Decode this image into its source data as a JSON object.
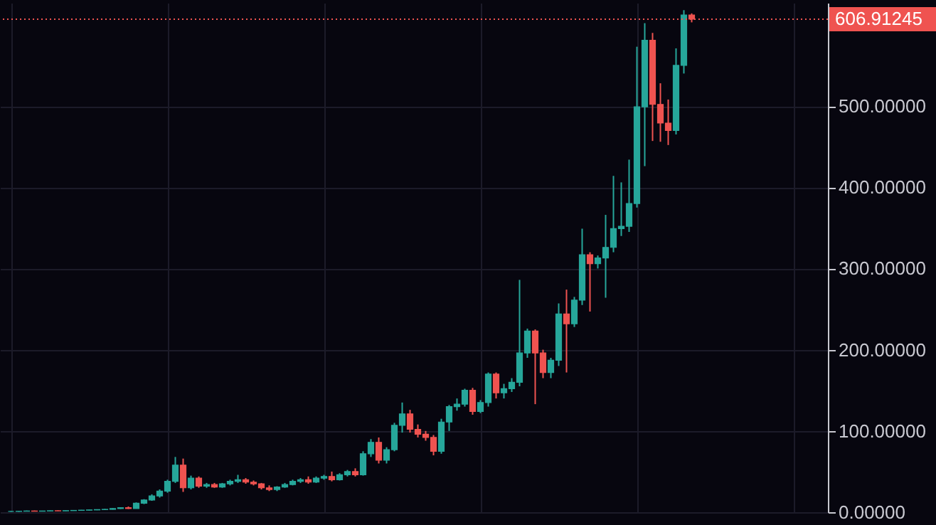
{
  "chart_data": {
    "type": "candlestick",
    "categories": [
      null,
      null,
      null,
      null,
      null,
      null,
      null,
      null,
      null,
      null,
      null,
      null,
      null,
      null,
      null,
      null,
      null,
      null,
      null,
      null,
      null,
      null,
      null,
      null,
      null,
      null,
      null,
      null,
      null,
      null,
      null,
      null,
      null,
      null,
      null,
      null,
      null,
      null,
      null,
      null,
      null,
      null,
      null,
      null,
      null,
      null,
      null,
      null,
      null,
      null,
      null,
      null,
      null,
      null,
      null,
      null,
      null,
      null,
      null,
      null,
      null,
      null,
      null,
      null,
      null,
      null,
      null,
      null,
      null,
      null,
      null,
      null,
      null,
      null,
      null,
      null,
      null,
      null,
      null,
      null,
      null,
      null,
      null,
      null,
      null,
      null,
      null,
      null,
      null,
      null,
      null,
      null,
      null,
      null,
      null,
      null,
      null,
      null,
      null,
      null,
      null,
      null,
      null,
      null
    ],
    "ohlc": [
      [
        1,
        1.5,
        0.5,
        1
      ],
      [
        1,
        1.5,
        0.5,
        1.2
      ],
      [
        1.2,
        2,
        1,
        1.5
      ],
      [
        1.5,
        2,
        1,
        1.2
      ],
      [
        1.2,
        1.8,
        1,
        1.5
      ],
      [
        1.5,
        2,
        1.2,
        1.8
      ],
      [
        1.8,
        2.2,
        1.5,
        1.6
      ],
      [
        1.6,
        2,
        1.4,
        1.9
      ],
      [
        1.9,
        2.5,
        1.7,
        2.2
      ],
      [
        2.2,
        2.8,
        2,
        2.5
      ],
      [
        2.5,
        3,
        2.2,
        2.8
      ],
      [
        2.8,
        3.5,
        2.5,
        3.2
      ],
      [
        3.2,
        4,
        3,
        3.5
      ],
      [
        3.5,
        5,
        3.2,
        4.5
      ],
      [
        4.5,
        6,
        4,
        5.5
      ],
      [
        5.5,
        7,
        4,
        4.5
      ],
      [
        4.5,
        12,
        4.5,
        11
      ],
      [
        11,
        16,
        10,
        15
      ],
      [
        15,
        22,
        14,
        20
      ],
      [
        20,
        28,
        18,
        26
      ],
      [
        26,
        40,
        24,
        38
      ],
      [
        38,
        68,
        36,
        58
      ],
      [
        58,
        66,
        25,
        30
      ],
      [
        30,
        45,
        28,
        42
      ],
      [
        42,
        44,
        30,
        32
      ],
      [
        32,
        36,
        30,
        34
      ],
      [
        34,
        36,
        30,
        31
      ],
      [
        31,
        36,
        30,
        35
      ],
      [
        35,
        40,
        33,
        38
      ],
      [
        38,
        46,
        36,
        40
      ],
      [
        40,
        42,
        35,
        37
      ],
      [
        37,
        39,
        33,
        35
      ],
      [
        35,
        36,
        28,
        30
      ],
      [
        30,
        33,
        26,
        28
      ],
      [
        28,
        32,
        26,
        31
      ],
      [
        31,
        36,
        30,
        34
      ],
      [
        34,
        40,
        33,
        38
      ],
      [
        38,
        42,
        36,
        40
      ],
      [
        40,
        44,
        35,
        37
      ],
      [
        37,
        44,
        36,
        42
      ],
      [
        42,
        46,
        40,
        44
      ],
      [
        44,
        50,
        38,
        40
      ],
      [
        40,
        48,
        39,
        46
      ],
      [
        46,
        52,
        44,
        50
      ],
      [
        50,
        54,
        44,
        46
      ],
      [
        46,
        75,
        45,
        72
      ],
      [
        72,
        90,
        68,
        86
      ],
      [
        86,
        92,
        60,
        64
      ],
      [
        64,
        80,
        60,
        77
      ],
      [
        77,
        110,
        75,
        107
      ],
      [
        107,
        135,
        98,
        121
      ],
      [
        121,
        126,
        98,
        102
      ],
      [
        102,
        108,
        92,
        96
      ],
      [
        96,
        100,
        88,
        92
      ],
      [
        92,
        95,
        70,
        75
      ],
      [
        75,
        115,
        72,
        111
      ],
      [
        111,
        132,
        100,
        130
      ],
      [
        130,
        140,
        125,
        133
      ],
      [
        133,
        152,
        130,
        150
      ],
      [
        150,
        153,
        120,
        124
      ],
      [
        124,
        138,
        122,
        135
      ],
      [
        135,
        172,
        130,
        170
      ],
      [
        170,
        172,
        140,
        147
      ],
      [
        147,
        158,
        140,
        152
      ],
      [
        152,
        165,
        148,
        160
      ],
      [
        160,
        286,
        155,
        196
      ],
      [
        196,
        226,
        190,
        223
      ],
      [
        223,
        225,
        133,
        196
      ],
      [
        196,
        200,
        165,
        172
      ],
      [
        172,
        190,
        165,
        187
      ],
      [
        187,
        257,
        180,
        244
      ],
      [
        244,
        274,
        172,
        232
      ],
      [
        232,
        265,
        228,
        261
      ],
      [
        261,
        349,
        255,
        317
      ],
      [
        317,
        320,
        247,
        306
      ],
      [
        306,
        316,
        300,
        313
      ],
      [
        313,
        366,
        264,
        326
      ],
      [
        326,
        414,
        320,
        349
      ],
      [
        349,
        406,
        340,
        352
      ],
      [
        352,
        434,
        345,
        380
      ],
      [
        380,
        573,
        375,
        499
      ],
      [
        499,
        602,
        426,
        581
      ],
      [
        581,
        590,
        457,
        502
      ],
      [
        502,
        528,
        456,
        479
      ],
      [
        479,
        508,
        452,
        470
      ],
      [
        470,
        571,
        465,
        550
      ],
      [
        550,
        618,
        540,
        612
      ],
      [
        612,
        614,
        603,
        606.91245
      ],
      null,
      null,
      null,
      null,
      null,
      null,
      null,
      null,
      null,
      null,
      null,
      null,
      null,
      null,
      null,
      null
    ],
    "colors": [
      "#26a69a",
      "#26a69a",
      "#26a69a",
      "#ef5350",
      "#26a69a",
      "#26a69a",
      "#ef5350",
      "#26a69a",
      "#26a69a",
      "#26a69a",
      "#26a69a",
      "#26a69a",
      "#26a69a",
      "#26a69a",
      "#26a69a",
      "#ef5350",
      "#26a69a",
      "#26a69a",
      "#26a69a",
      "#26a69a",
      "#26a69a",
      "#26a69a",
      "#ef5350",
      "#26a69a",
      "#ef5350",
      "#26a69a",
      "#ef5350",
      "#26a69a",
      "#26a69a",
      "#26a69a",
      "#ef5350",
      "#ef5350",
      "#ef5350",
      "#ef5350",
      "#26a69a",
      "#26a69a",
      "#26a69a",
      "#26a69a",
      "#ef5350",
      "#26a69a",
      "#26a69a",
      "#ef5350",
      "#26a69a",
      "#26a69a",
      "#ef5350",
      "#26a69a",
      "#26a69a",
      "#ef5350",
      "#26a69a",
      "#26a69a",
      "#26a69a",
      "#ef5350",
      "#ef5350",
      "#ef5350",
      "#ef5350",
      "#26a69a",
      "#26a69a",
      "#26a69a",
      "#26a69a",
      "#ef5350",
      "#26a69a",
      "#26a69a",
      "#ef5350",
      "#26a69a",
      "#26a69a",
      "#26a69a",
      "#26a69a",
      "#ef5350",
      "#ef5350",
      "#26a69a",
      "#26a69a",
      "#ef5350",
      "#26a69a",
      "#26a69a",
      "#ef5350",
      "#26a69a",
      "#26a69a",
      "#26a69a",
      "#26a69a",
      "#26a69a",
      "#26a69a",
      "#26a69a",
      "#ef5350",
      "#ef5350",
      "#ef5350",
      "#26a69a",
      "#26a69a",
      "#ef5350",
      null,
      null,
      null,
      null,
      null,
      null,
      null,
      null,
      null,
      null,
      null,
      null,
      null,
      null,
      null,
      null
    ],
    "ylim": [
      0,
      627
    ],
    "yticks": [
      {
        "value": 0,
        "label": "0.00000"
      },
      {
        "value": 100,
        "label": "100.00000"
      },
      {
        "value": 200,
        "label": "200.00000"
      },
      {
        "value": 300,
        "label": "300.00000"
      },
      {
        "value": 400,
        "label": "400.00000"
      },
      {
        "value": 500,
        "label": "500.00000"
      }
    ],
    "grid": true,
    "tick_labels": "y",
    "ref_lines": [
      {
        "axis": "y",
        "value": 606.91245,
        "label": "606.91245",
        "color": "#ef5350",
        "line_style": "dotted"
      }
    ]
  }
}
